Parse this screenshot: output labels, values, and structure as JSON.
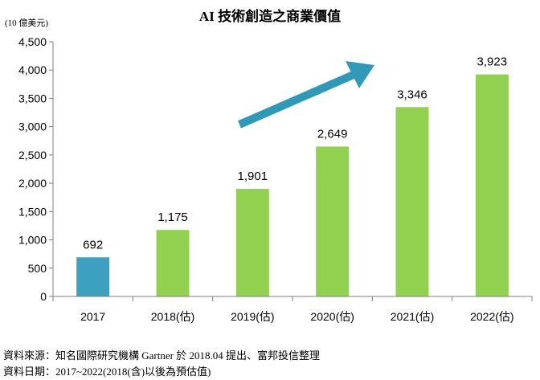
{
  "chart_data": {
    "type": "bar",
    "title": "AI 技術創造之商業價值",
    "ylabel": "(10 億美元)",
    "xlabel": "",
    "categories": [
      "2017",
      "2018(估)",
      "2019(估)",
      "2020(估)",
      "2021(估)",
      "2022(估)"
    ],
    "values": [
      692,
      1175,
      1901,
      2649,
      3346,
      3923
    ],
    "data_labels": [
      "692",
      "1,175",
      "1,901",
      "2,649",
      "3,346",
      "3,923"
    ],
    "ylim": [
      0,
      4500
    ],
    "yticks": [
      0,
      500,
      1000,
      1500,
      2000,
      2500,
      3000,
      3500,
      4000,
      4500
    ],
    "ytick_labels": [
      "0",
      "500",
      "1,000",
      "1,500",
      "2,000",
      "2,500",
      "3,000",
      "3,500",
      "4,000",
      "4,500"
    ],
    "grid": false,
    "legend": "none",
    "colors": {
      "actual": "#3CA0C0",
      "estimate": "#92D050",
      "arrow": "#2E9AB8",
      "axis": "#7f7f7f"
    },
    "annotations": [
      {
        "type": "arrow",
        "meaning": "upward trend"
      }
    ]
  },
  "notes": {
    "source": "資料來源：知名國際研究機構 Gartner 於 2018.04 提出、富邦投信整理",
    "date": "資料日期：2017~2022(2018(含)以後為預估值)"
  }
}
